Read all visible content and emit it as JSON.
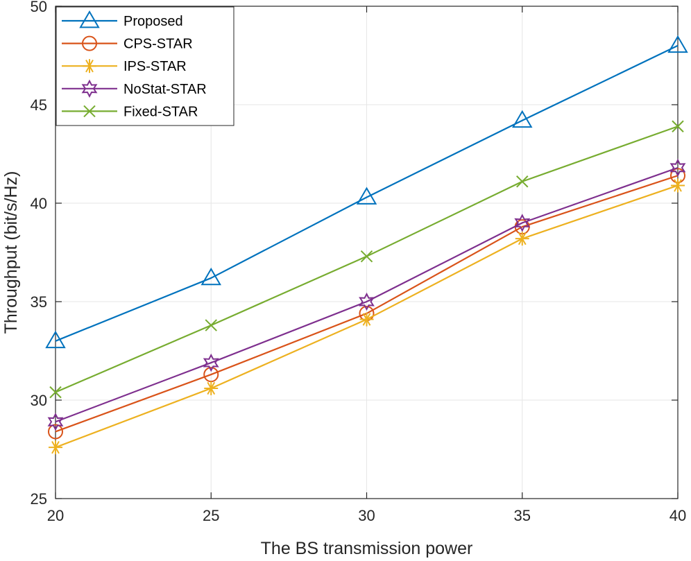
{
  "chart_data": {
    "type": "line",
    "xlabel": "The BS transmission power",
    "ylabel": "Throughput (bit/s/Hz)",
    "xlim": [
      20,
      40
    ],
    "ylim": [
      25,
      50
    ],
    "xticks": [
      20,
      25,
      30,
      35,
      40
    ],
    "yticks": [
      25,
      30,
      35,
      40,
      45,
      50
    ],
    "grid": true,
    "legend_position": "top-left",
    "x": [
      20,
      25,
      30,
      35,
      40
    ],
    "series": [
      {
        "name": "Proposed",
        "values": [
          33.0,
          36.2,
          40.3,
          44.2,
          48.0
        ],
        "color": "#0072BD",
        "marker": "triangle"
      },
      {
        "name": "CPS-STAR",
        "values": [
          28.4,
          31.3,
          34.4,
          38.8,
          41.4
        ],
        "color": "#D95319",
        "marker": "circle"
      },
      {
        "name": "IPS-STAR",
        "values": [
          27.6,
          30.6,
          34.1,
          38.2,
          40.9
        ],
        "color": "#EDB120",
        "marker": "asterisk"
      },
      {
        "name": "NoStat-STAR",
        "values": [
          28.9,
          31.9,
          35.0,
          39.0,
          41.8
        ],
        "color": "#7E2F8E",
        "marker": "hexagram"
      },
      {
        "name": "Fixed-STAR",
        "values": [
          30.4,
          33.8,
          37.3,
          41.1,
          43.9
        ],
        "color": "#77AC30",
        "marker": "x"
      }
    ]
  }
}
